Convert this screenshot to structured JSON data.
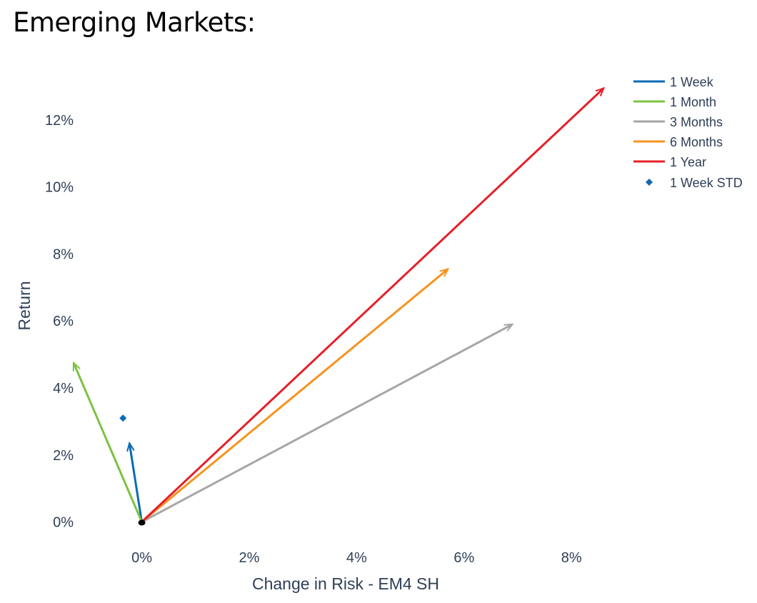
{
  "page": {
    "title": "Emerging Markets:"
  },
  "chart_data": {
    "type": "line",
    "title": "Emerging Markets:",
    "xlabel": "Change in Risk - EM4 SH",
    "ylabel": "Return",
    "xlim": [
      -1.35,
      9.3
    ],
    "ylim": [
      -0.65,
      13.3
    ],
    "x_ticks": [
      0,
      2,
      4,
      6,
      8
    ],
    "x_tick_labels": [
      "0%",
      "2%",
      "4%",
      "6%",
      "8%"
    ],
    "y_ticks": [
      0,
      2,
      4,
      6,
      8,
      10,
      12
    ],
    "y_tick_labels": [
      "0%",
      "2%",
      "4%",
      "6%",
      "8%",
      "10%",
      "12%"
    ],
    "grid": false,
    "legend_position": "top-right",
    "origin": {
      "x": 0,
      "y": 0
    },
    "series": [
      {
        "name": "1 Week",
        "color": "#0a6bb3",
        "kind": "arrow",
        "points": [
          {
            "x": 0,
            "y": 0
          },
          {
            "x": -0.23,
            "y": 2.35
          }
        ]
      },
      {
        "name": "1 Month",
        "color": "#7cc242",
        "kind": "arrow",
        "points": [
          {
            "x": 0,
            "y": 0
          },
          {
            "x": -1.27,
            "y": 4.75
          }
        ]
      },
      {
        "name": "3 Months",
        "color": "#a6a6a6",
        "kind": "arrow",
        "points": [
          {
            "x": 0,
            "y": 0
          },
          {
            "x": 6.9,
            "y": 5.9
          }
        ]
      },
      {
        "name": "6 Months",
        "color": "#f7931e",
        "kind": "arrow",
        "points": [
          {
            "x": 0,
            "y": 0
          },
          {
            "x": 5.7,
            "y": 7.55
          }
        ]
      },
      {
        "name": "1 Year",
        "color": "#e5202a",
        "kind": "arrow",
        "points": [
          {
            "x": 0,
            "y": 0
          },
          {
            "x": 8.6,
            "y": 12.95
          }
        ]
      },
      {
        "name": "1 Week STD",
        "color": "#0a6bb3",
        "kind": "marker",
        "points": [
          {
            "x": -0.35,
            "y": 3.1
          }
        ]
      }
    ]
  }
}
